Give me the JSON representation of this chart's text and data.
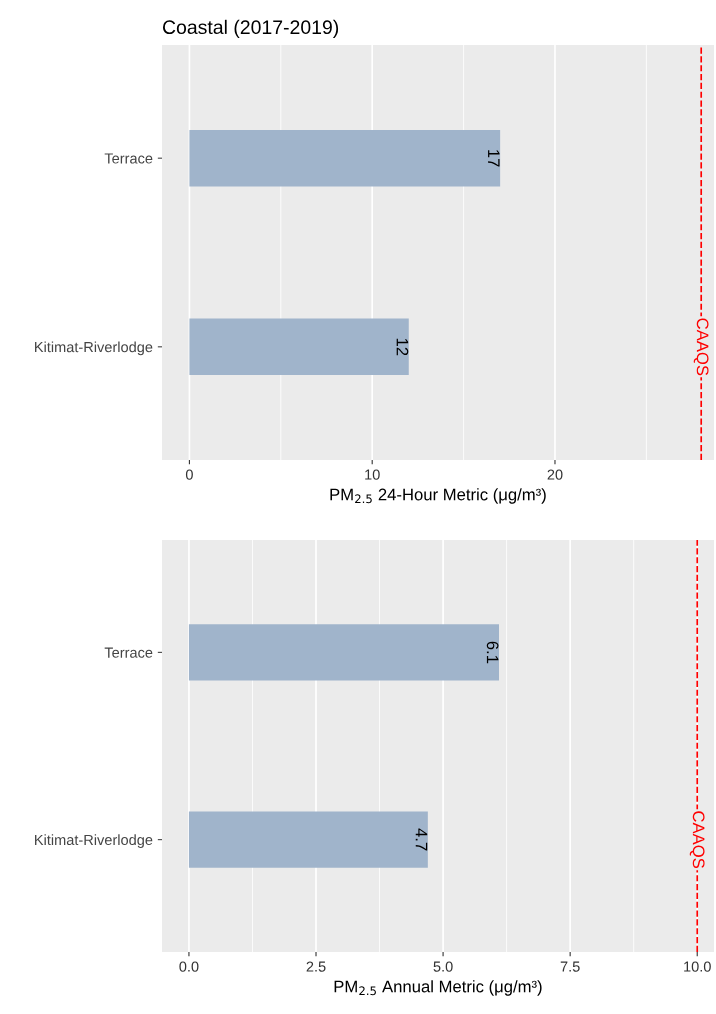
{
  "chart_data": [
    {
      "type": "bar",
      "orientation": "horizontal",
      "title": "Coastal (2017-2019)",
      "categories": [
        "Terrace",
        "Kitimat-Riverlodge"
      ],
      "values": [
        17,
        12
      ],
      "color": "#a0b4cb",
      "data_labels": true,
      "xlabel": "PM$_{2.5}$ 24-Hour Metric (μg/m³)",
      "xlim": [
        -1.5,
        28.7
      ],
      "xticks": [
        0,
        10,
        20
      ],
      "grid": "x",
      "ref_lines": [
        {
          "axis": "x",
          "value": 28,
          "label": "CAAQS",
          "color": "#ff0000",
          "line_style": "dashed"
        }
      ]
    },
    {
      "type": "bar",
      "orientation": "horizontal",
      "categories": [
        "Terrace",
        "Kitimat-Riverlodge"
      ],
      "values": [
        6.1,
        4.7
      ],
      "color": "#a0b4cb",
      "data_labels": true,
      "xlabel": "PM$_{2.5}$ Annual Metric (μg/m³)",
      "xlim": [
        -0.53,
        10.33
      ],
      "xticks": [
        {
          "value": 0,
          "label": "0.0"
        },
        {
          "value": 2.5,
          "label": "2.5"
        },
        {
          "value": 5,
          "label": "5.0"
        },
        {
          "value": 7.5,
          "label": "7.5"
        },
        {
          "value": 10,
          "label": "10.0"
        }
      ],
      "grid": "x",
      "ref_lines": [
        {
          "axis": "x",
          "value": 10,
          "label": "CAAQS",
          "color": "#ff0000",
          "line_style": "dashed"
        }
      ]
    }
  ]
}
